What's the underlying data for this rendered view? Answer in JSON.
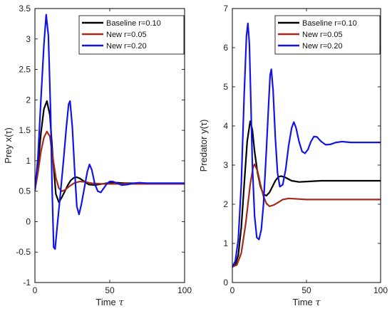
{
  "chart_data": [
    {
      "type": "line",
      "title": "",
      "xlabel": "Time",
      "xlabel_symbol": "τ",
      "ylabel": "Prey x(τ)",
      "xlim": [
        0,
        100
      ],
      "ylim": [
        -1,
        3.5
      ],
      "xticks": [
        "0",
        "50",
        "100"
      ],
      "yticks": [
        "-1",
        "-0.5",
        "0",
        "0.5",
        "1",
        "1.5",
        "2",
        "2.5",
        "3",
        "3.5"
      ],
      "legend_position": "top-right",
      "grid": false,
      "series": [
        {
          "name": "Baseline r=0.10",
          "color": "#000000",
          "points": [
            [
              0,
              0.52
            ],
            [
              2,
              0.9
            ],
            [
              4,
              1.45
            ],
            [
              6,
              1.85
            ],
            [
              8,
              1.98
            ],
            [
              10,
              1.75
            ],
            [
              12,
              1.05
            ],
            [
              14,
              0.45
            ],
            [
              16,
              0.32
            ],
            [
              18,
              0.4
            ],
            [
              20,
              0.5
            ],
            [
              22,
              0.6
            ],
            [
              24,
              0.68
            ],
            [
              26,
              0.72
            ],
            [
              28,
              0.73
            ],
            [
              30,
              0.71
            ],
            [
              33,
              0.66
            ],
            [
              36,
              0.61
            ],
            [
              40,
              0.6
            ],
            [
              45,
              0.62
            ],
            [
              50,
              0.64
            ],
            [
              55,
              0.64
            ],
            [
              60,
              0.63
            ],
            [
              70,
              0.63
            ],
            [
              80,
              0.63
            ],
            [
              100,
              0.63
            ]
          ]
        },
        {
          "name": "New r=0.05",
          "color": "#a52a1a",
          "points": [
            [
              0,
              0.52
            ],
            [
              2,
              0.8
            ],
            [
              4,
              1.15
            ],
            [
              6,
              1.38
            ],
            [
              8,
              1.48
            ],
            [
              10,
              1.4
            ],
            [
              12,
              1.05
            ],
            [
              14,
              0.72
            ],
            [
              16,
              0.55
            ],
            [
              18,
              0.5
            ],
            [
              20,
              0.52
            ],
            [
              23,
              0.58
            ],
            [
              26,
              0.63
            ],
            [
              30,
              0.66
            ],
            [
              34,
              0.65
            ],
            [
              38,
              0.63
            ],
            [
              45,
              0.62
            ],
            [
              55,
              0.62
            ],
            [
              70,
              0.62
            ],
            [
              100,
              0.62
            ]
          ]
        },
        {
          "name": "New r=0.20",
          "color": "#1414e6",
          "points": [
            [
              0,
              0.52
            ],
            [
              2,
              1.05
            ],
            [
              4,
              2.0
            ],
            [
              6,
              2.9
            ],
            [
              7.5,
              3.4
            ],
            [
              9,
              3.05
            ],
            [
              10.5,
              1.8
            ],
            [
              11.5,
              0.5
            ],
            [
              12.5,
              -0.42
            ],
            [
              13.5,
              -0.45
            ],
            [
              15,
              -0.05
            ],
            [
              17,
              0.45
            ],
            [
              19,
              0.98
            ],
            [
              21,
              1.55
            ],
            [
              22.5,
              1.93
            ],
            [
              23.5,
              1.98
            ],
            [
              25,
              1.55
            ],
            [
              26.5,
              0.85
            ],
            [
              28,
              0.25
            ],
            [
              29.5,
              0.12
            ],
            [
              31,
              0.28
            ],
            [
              33,
              0.55
            ],
            [
              35,
              0.82
            ],
            [
              36.5,
              0.94
            ],
            [
              38,
              0.85
            ],
            [
              40,
              0.62
            ],
            [
              42,
              0.5
            ],
            [
              44,
              0.48
            ],
            [
              46,
              0.55
            ],
            [
              48,
              0.62
            ],
            [
              50,
              0.66
            ],
            [
              52,
              0.66
            ],
            [
              55,
              0.63
            ],
            [
              58,
              0.6
            ],
            [
              62,
              0.61
            ],
            [
              66,
              0.63
            ],
            [
              70,
              0.64
            ],
            [
              75,
              0.63
            ],
            [
              80,
              0.63
            ],
            [
              90,
              0.63
            ],
            [
              100,
              0.63
            ]
          ]
        }
      ]
    },
    {
      "type": "line",
      "title": "",
      "xlabel": "Time",
      "xlabel_symbol": "τ",
      "ylabel": "Predator y(τ)",
      "xlim": [
        0,
        100
      ],
      "ylim": [
        0,
        7
      ],
      "xticks": [
        "0",
        "50",
        "100"
      ],
      "yticks": [
        "0",
        "1",
        "2",
        "3",
        "4",
        "5",
        "6",
        "7"
      ],
      "legend_position": "top-right",
      "grid": false,
      "series": [
        {
          "name": "Baseline r=0.10",
          "color": "#000000",
          "points": [
            [
              0,
              0.4
            ],
            [
              2,
              0.45
            ],
            [
              4,
              0.7
            ],
            [
              6,
              1.4
            ],
            [
              8,
              2.5
            ],
            [
              10,
              3.6
            ],
            [
              12,
              4.12
            ],
            [
              13.5,
              3.9
            ],
            [
              15,
              3.35
            ],
            [
              17,
              2.8
            ],
            [
              19,
              2.45
            ],
            [
              21,
              2.25
            ],
            [
              23,
              2.22
            ],
            [
              25,
              2.3
            ],
            [
              27,
              2.45
            ],
            [
              29,
              2.6
            ],
            [
              31,
              2.7
            ],
            [
              33,
              2.72
            ],
            [
              36,
              2.68
            ],
            [
              40,
              2.6
            ],
            [
              45,
              2.57
            ],
            [
              50,
              2.58
            ],
            [
              60,
              2.6
            ],
            [
              70,
              2.6
            ],
            [
              100,
              2.6
            ]
          ]
        },
        {
          "name": "New r=0.05",
          "color": "#a52a1a",
          "points": [
            [
              0,
              0.4
            ],
            [
              3,
              0.45
            ],
            [
              6,
              0.75
            ],
            [
              9,
              1.5
            ],
            [
              12,
              2.5
            ],
            [
              14,
              2.95
            ],
            [
              15,
              3.02
            ],
            [
              17,
              2.85
            ],
            [
              19,
              2.5
            ],
            [
              21,
              2.2
            ],
            [
              23,
              2.02
            ],
            [
              25,
              1.95
            ],
            [
              28,
              1.98
            ],
            [
              31,
              2.05
            ],
            [
              34,
              2.12
            ],
            [
              38,
              2.15
            ],
            [
              42,
              2.14
            ],
            [
              50,
              2.12
            ],
            [
              60,
              2.12
            ],
            [
              100,
              2.12
            ]
          ]
        },
        {
          "name": "New r=0.20",
          "color": "#1414e6",
          "points": [
            [
              0,
              0.4
            ],
            [
              2,
              0.55
            ],
            [
              4,
              1.1
            ],
            [
              6,
              2.5
            ],
            [
              8,
              4.8
            ],
            [
              9.5,
              6.3
            ],
            [
              10.5,
              6.62
            ],
            [
              11.5,
              6.1
            ],
            [
              12.5,
              4.6
            ],
            [
              13.5,
              3.0
            ],
            [
              15,
              1.7
            ],
            [
              16.5,
              1.15
            ],
            [
              18,
              1.1
            ],
            [
              19.5,
              1.35
            ],
            [
              21,
              2.0
            ],
            [
              23,
              3.4
            ],
            [
              24.5,
              4.6
            ],
            [
              25.5,
              5.3
            ],
            [
              26.3,
              5.45
            ],
            [
              27.5,
              4.9
            ],
            [
              29,
              3.7
            ],
            [
              30.5,
              2.8
            ],
            [
              32,
              2.45
            ],
            [
              34,
              2.5
            ],
            [
              36,
              2.9
            ],
            [
              38,
              3.5
            ],
            [
              40,
              3.95
            ],
            [
              41.5,
              4.1
            ],
            [
              43,
              3.95
            ],
            [
              45,
              3.6
            ],
            [
              47,
              3.35
            ],
            [
              49,
              3.3
            ],
            [
              51,
              3.4
            ],
            [
              53,
              3.6
            ],
            [
              55,
              3.73
            ],
            [
              57,
              3.72
            ],
            [
              60,
              3.6
            ],
            [
              63,
              3.52
            ],
            [
              66,
              3.53
            ],
            [
              70,
              3.58
            ],
            [
              74,
              3.6
            ],
            [
              80,
              3.58
            ],
            [
              90,
              3.58
            ],
            [
              100,
              3.58
            ]
          ]
        }
      ]
    }
  ]
}
